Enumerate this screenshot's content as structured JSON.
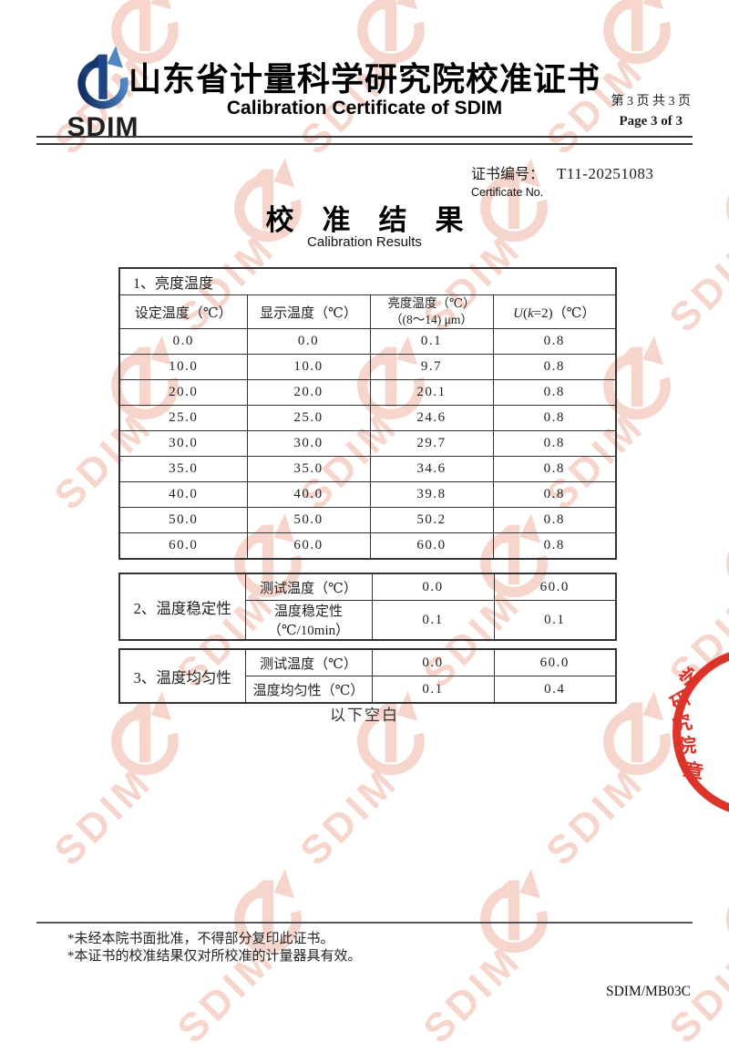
{
  "header": {
    "logo_text": "SDIM",
    "title_cn": "山东省计量科学研究院校准证书",
    "title_en": "Calibration Certificate of SDIM",
    "page_info_cn": "第 3 页 共 3 页",
    "page_info_en": "Page 3 of 3"
  },
  "certificate": {
    "number_label_cn": "证书编号：",
    "number": "T11-20251083",
    "number_label_en": "Certificate No."
  },
  "results_title": {
    "cn": "校　准　结　果",
    "en": "Calibration Results"
  },
  "table1": {
    "caption": "1、亮度温度",
    "col1": "设定温度（℃）",
    "col2": "显示温度（℃）",
    "col3_line1": "亮度温度（℃）",
    "col3_line2": "（(8～14) μm）",
    "col4": {
      "p1": "U",
      "p2": "(",
      "p3": "k",
      "p4": "=2)（℃）"
    },
    "rows": [
      [
        "0.0",
        "0.0",
        "0.1",
        "0.8"
      ],
      [
        "10.0",
        "10.0",
        "9.7",
        "0.8"
      ],
      [
        "20.0",
        "20.0",
        "20.1",
        "0.8"
      ],
      [
        "25.0",
        "25.0",
        "24.6",
        "0.8"
      ],
      [
        "30.0",
        "30.0",
        "29.7",
        "0.8"
      ],
      [
        "35.0",
        "35.0",
        "34.6",
        "0.8"
      ],
      [
        "40.0",
        "40.0",
        "39.8",
        "0.8"
      ],
      [
        "50.0",
        "50.0",
        "50.2",
        "0.8"
      ],
      [
        "60.0",
        "60.0",
        "60.0",
        "0.8"
      ]
    ]
  },
  "table2": {
    "label": "2、温度稳定性",
    "r1": {
      "param": "测试温度（℃）",
      "v1": "0.0",
      "v2": "60.0"
    },
    "r2": {
      "param": "温度稳定性（℃/10min）",
      "v1": "0.1",
      "v2": "0.1"
    }
  },
  "table3": {
    "label": "3、温度均匀性",
    "r1": {
      "param": "测试温度（℃）",
      "v1": "0.0",
      "v2": "60.0"
    },
    "r2": {
      "param": "温度均匀性（℃）",
      "v1": "0.1",
      "v2": "0.4"
    }
  },
  "blank_note": "以下空白",
  "footnotes": {
    "note1": "*未经本院书面批准，不得部分复印此证书。",
    "note2": "*本证书的校准结果仅对所校准的计量器具有效。"
  },
  "doc_code": "SDIM/MB03C",
  "watermark": {
    "text": "SDIM"
  },
  "seal": {
    "c1": "学",
    "c2": "研",
    "c3": "究",
    "c4": "院",
    "c5": "章"
  },
  "colors": {
    "logo_blue": "#1d4484",
    "watermark_red": "#e88f74",
    "seal_red": "#dc241a"
  }
}
